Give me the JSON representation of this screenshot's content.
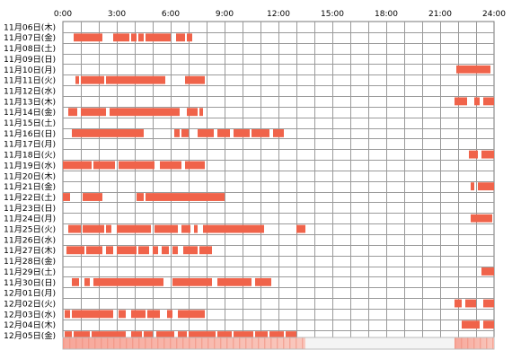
{
  "chart_data": {
    "type": "timeline",
    "title": "",
    "x_ticks": [
      "0:00",
      "3:00",
      "6:00",
      "9:00",
      "12:00",
      "15:00",
      "18:00",
      "21:00",
      "24:00"
    ],
    "x_range": [
      0,
      24
    ],
    "grid": "every 1 hour",
    "colors": {
      "bar": "#f0634a",
      "bar_light": "#f58c6a",
      "grid": "#999999"
    },
    "rows": [
      {
        "label": "11月06日(木)",
        "segments": []
      },
      {
        "label": "11月07日(金)",
        "segments": [
          [
            0.6,
            2.2
          ],
          [
            2.8,
            3.7
          ],
          [
            3.8,
            4.1
          ],
          [
            4.2,
            4.5
          ],
          [
            4.6,
            6.0
          ],
          [
            6.3,
            6.8
          ],
          [
            6.9,
            7.2
          ]
        ]
      },
      {
        "label": "11月08日(土)",
        "segments": []
      },
      {
        "label": "11月09日(日)",
        "segments": []
      },
      {
        "label": "11月10日(月)",
        "segments": [
          [
            21.9,
            23.8
          ]
        ]
      },
      {
        "label": "11月11日(火)",
        "segments": [
          [
            0.7,
            0.9
          ],
          [
            1.0,
            2.3
          ],
          [
            2.4,
            5.7
          ],
          [
            6.8,
            7.9
          ]
        ]
      },
      {
        "label": "11月12日(水)",
        "segments": []
      },
      {
        "label": "11月13日(木)",
        "segments": [
          [
            21.8,
            22.5
          ],
          [
            22.9,
            23.2
          ],
          [
            23.4,
            24.0
          ]
        ]
      },
      {
        "label": "11月14日(金)",
        "segments": [
          [
            0.3,
            0.8
          ],
          [
            1.0,
            2.4
          ],
          [
            2.6,
            6.5
          ],
          [
            6.9,
            7.5
          ],
          [
            7.6,
            7.8
          ]
        ]
      },
      {
        "label": "11月15日(土)",
        "segments": []
      },
      {
        "label": "11月16日(日)",
        "segments": [
          [
            0.5,
            4.5
          ],
          [
            6.2,
            6.5
          ],
          [
            6.6,
            7.0
          ],
          [
            7.5,
            8.4
          ],
          [
            8.6,
            9.3
          ],
          [
            9.5,
            10.4
          ],
          [
            10.5,
            11.5
          ],
          [
            11.7,
            12.3
          ]
        ]
      },
      {
        "label": "11月17日(月)",
        "segments": []
      },
      {
        "label": "11月18日(火)",
        "segments": [
          [
            22.6,
            23.1
          ],
          [
            23.3,
            24.0
          ]
        ]
      },
      {
        "label": "11月19日(水)",
        "segments": [
          [
            0.0,
            1.6
          ],
          [
            1.7,
            2.9
          ],
          [
            3.1,
            5.1
          ],
          [
            5.4,
            6.6
          ],
          [
            6.8,
            7.9
          ]
        ]
      },
      {
        "label": "11月20日(木)",
        "segments": []
      },
      {
        "label": "11月21日(金)",
        "segments": [
          [
            22.7,
            22.9
          ],
          [
            23.1,
            24.0
          ]
        ]
      },
      {
        "label": "11月22日(土)",
        "segments": [
          [
            0.0,
            0.4
          ],
          [
            1.1,
            2.2
          ],
          [
            4.1,
            4.5
          ],
          [
            4.6,
            9.0
          ]
        ]
      },
      {
        "label": "11月23日(日)",
        "segments": []
      },
      {
        "label": "11月24日(月)",
        "segments": [
          [
            22.7,
            23.9
          ]
        ]
      },
      {
        "label": "11月25日(火)",
        "segments": [
          [
            0.3,
            1.0
          ],
          [
            1.1,
            2.3
          ],
          [
            2.4,
            2.7
          ],
          [
            3.0,
            4.9
          ],
          [
            5.1,
            6.4
          ],
          [
            6.6,
            7.1
          ],
          [
            7.3,
            7.5
          ],
          [
            7.8,
            11.2
          ],
          [
            13.0,
            13.5
          ]
        ]
      },
      {
        "label": "11月26日(水)",
        "segments": []
      },
      {
        "label": "11月27日(木)",
        "segments": [
          [
            0.2,
            1.2
          ],
          [
            1.3,
            2.2
          ],
          [
            2.4,
            2.8
          ],
          [
            3.0,
            4.1
          ],
          [
            4.2,
            4.8
          ],
          [
            5.0,
            5.3
          ],
          [
            5.5,
            5.9
          ],
          [
            6.1,
            6.4
          ],
          [
            6.7,
            7.5
          ],
          [
            7.6,
            8.3
          ]
        ]
      },
      {
        "label": "11月28日(金)",
        "segments": []
      },
      {
        "label": "11月29日(土)",
        "segments": [
          [
            23.3,
            24.0
          ]
        ]
      },
      {
        "label": "11月30日(日)",
        "segments": [
          [
            0.5,
            0.9
          ],
          [
            1.2,
            1.5
          ],
          [
            1.7,
            5.6
          ],
          [
            6.1,
            8.3
          ],
          [
            8.6,
            10.5
          ],
          [
            10.7,
            11.6
          ]
        ]
      },
      {
        "label": "12月01日(月)",
        "segments": []
      },
      {
        "label": "12月02日(火)",
        "segments": [
          [
            21.8,
            22.2
          ],
          [
            22.4,
            23.0
          ],
          [
            23.4,
            24.0
          ]
        ]
      },
      {
        "label": "12月03日(水)",
        "segments": [
          [
            0.1,
            0.4
          ],
          [
            0.5,
            2.8
          ],
          [
            3.1,
            3.5
          ],
          [
            3.8,
            4.6
          ],
          [
            4.7,
            5.4
          ],
          [
            5.8,
            6.1
          ],
          [
            6.4,
            7.9
          ]
        ]
      },
      {
        "label": "12月04日(木)",
        "segments": [
          [
            22.2,
            23.2
          ],
          [
            23.4,
            24.0
          ]
        ]
      },
      {
        "label": "12月05日(金)",
        "segments": [
          [
            0.1,
            0.5
          ],
          [
            0.6,
            1.5
          ],
          [
            1.6,
            3.5
          ],
          [
            3.8,
            4.4
          ],
          [
            4.5,
            5.0
          ],
          [
            5.2,
            6.2
          ],
          [
            6.4,
            6.9
          ],
          [
            7.0,
            8.5
          ],
          [
            8.6,
            9.4
          ],
          [
            9.5,
            10.6
          ],
          [
            10.7,
            11.4
          ],
          [
            11.5,
            12.3
          ],
          [
            12.4,
            13.0
          ]
        ]
      }
    ],
    "overview_bar": {
      "active_ranges": [
        [
          0,
          13.5
        ],
        [
          21.8,
          24
        ]
      ]
    }
  }
}
